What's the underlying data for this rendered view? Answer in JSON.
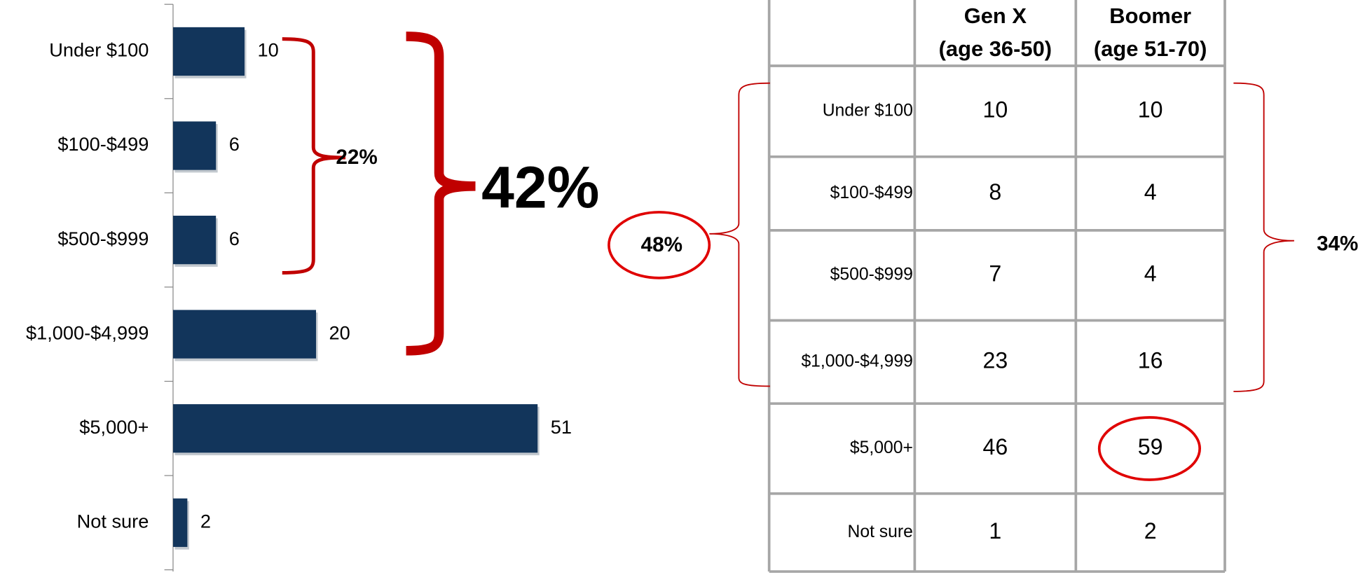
{
  "chart_data": {
    "type": "bar",
    "orientation": "horizontal",
    "categories": [
      "Under $100",
      "$100-$499",
      "$500-$999",
      "$1,000-$4,999",
      "$5,000+",
      "Not sure"
    ],
    "values": [
      10,
      6,
      6,
      20,
      51,
      2
    ],
    "color": "#12355b",
    "annotations": [
      "22%",
      "42%"
    ]
  },
  "table": {
    "columns": [
      [
        "Gen X",
        "(age 36-50)"
      ],
      [
        "Boomer",
        "(age 51-70)"
      ]
    ],
    "rows": [
      {
        "label": "Under $100",
        "values": [
          10,
          10
        ]
      },
      {
        "label": "$100-$499",
        "values": [
          8,
          4
        ]
      },
      {
        "label": "$500-$999",
        "values": [
          7,
          4
        ]
      },
      {
        "label": "$1,000-$4,999",
        "values": [
          23,
          16
        ]
      },
      {
        "label": "$5,000+",
        "values": [
          46,
          59
        ]
      },
      {
        "label": "Not sure",
        "values": [
          1,
          2
        ]
      }
    ],
    "annotations": [
      "48%",
      "34%"
    ]
  }
}
